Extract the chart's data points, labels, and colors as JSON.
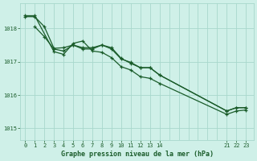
{
  "bg_color": "#cff0e8",
  "grid_color": "#a8d8cc",
  "line_color": "#1a5c2a",
  "tick_color": "#1a5c2a",
  "xlabel_color": "#1a5c2a",
  "title_text": "Graphe pression niveau de la mer (hPa)",
  "xticks": [
    0,
    1,
    2,
    3,
    4,
    5,
    6,
    7,
    8,
    9,
    10,
    11,
    12,
    13,
    14,
    21,
    22,
    23
  ],
  "yticks": [
    1015,
    1016,
    1017,
    1018
  ],
  "ylim": [
    1014.65,
    1018.75
  ],
  "xlim": [
    -0.5,
    23.8
  ],
  "line1_x": [
    0,
    1,
    2,
    3,
    4,
    5,
    6,
    7,
    8,
    9,
    10,
    11,
    12,
    13,
    14,
    21,
    22,
    23
  ],
  "line1_y": [
    1018.35,
    1018.35,
    1018.05,
    1017.4,
    1017.42,
    1017.5,
    1017.42,
    1017.42,
    1017.5,
    1017.42,
    1017.1,
    1016.95,
    1016.82,
    1016.82,
    1016.6,
    1015.52,
    1015.62,
    1015.62
  ],
  "line2_x": [
    1,
    2,
    3,
    4,
    5,
    6,
    7,
    8,
    9,
    10,
    11,
    12,
    13,
    14,
    21,
    22,
    23
  ],
  "line2_y": [
    1018.05,
    1017.75,
    1017.38,
    1017.32,
    1017.5,
    1017.38,
    1017.38,
    1017.5,
    1017.38,
    1017.08,
    1016.98,
    1016.82,
    1016.82,
    1016.6,
    1015.52,
    1015.62,
    1015.62
  ],
  "line3_x": [
    0,
    1,
    3,
    4,
    5,
    6,
    7,
    8,
    9,
    10,
    11,
    12,
    13,
    14,
    21,
    22,
    23
  ],
  "line3_y": [
    1018.38,
    1018.38,
    1017.3,
    1017.22,
    1017.55,
    1017.62,
    1017.32,
    1017.28,
    1017.12,
    1016.85,
    1016.75,
    1016.55,
    1016.5,
    1016.35,
    1015.42,
    1015.52,
    1015.55
  ]
}
